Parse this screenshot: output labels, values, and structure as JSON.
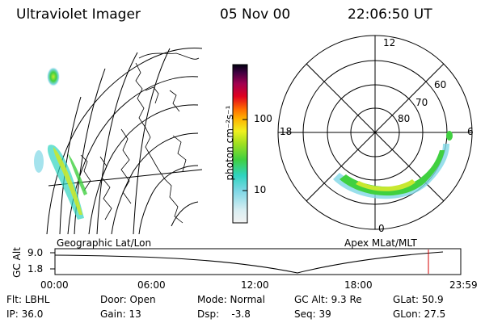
{
  "header": {
    "title": "Ultraviolet Imager",
    "date": "05 Nov 00",
    "time": "22:06:50 UT"
  },
  "colorbar": {
    "label": "photon cm⁻²s⁻¹",
    "ticks": [
      "100",
      "10"
    ]
  },
  "polar": {
    "mlt_labels": {
      "top": "12",
      "left": "18",
      "right": "6",
      "bottom": "0"
    },
    "lat_labels": [
      "60",
      "70",
      "80"
    ]
  },
  "left_map": {
    "caption": "Geographic Lat/Lon"
  },
  "right_map": {
    "caption": "Apex MLat/MLT"
  },
  "timeline": {
    "axis_label": "GC Alt",
    "y_ticks": [
      "9.0",
      "1.8"
    ],
    "x_ticks": [
      "00:00",
      "06:00",
      "12:00",
      "18:00",
      "23:59"
    ],
    "marker_color": "#d40000"
  },
  "info": {
    "row1": {
      "flt": "Flt: LBHL",
      "door": "Door: Open",
      "mode": "Mode: Normal",
      "gcalt": "GC Alt: 9.3 Re",
      "glat": "GLat: 50.9"
    },
    "row2": {
      "ip": "IP: 36.0",
      "gain": "Gain: 13",
      "dsp": "Dsp:    -3.8",
      "seq": "Seq: 39",
      "glon": "GLon: 27.5"
    }
  }
}
